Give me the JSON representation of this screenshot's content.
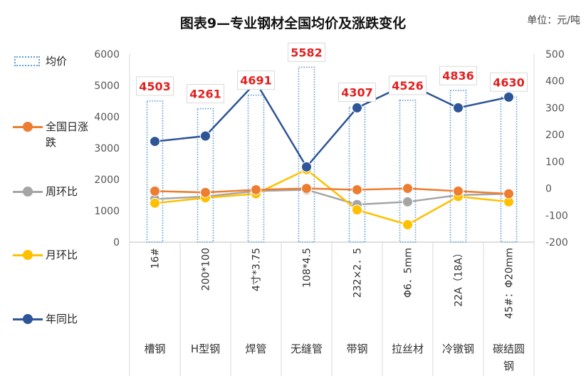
{
  "chart_data": {
    "type": "bar+line",
    "title": "图表9—专业钢材全国均价及涨跌变化",
    "unit_label": "单位：元/吨",
    "categories": [
      "槽钢",
      "H型钢",
      "焊管",
      "无缝管",
      "带钢",
      "拉丝材",
      "冷镦钢",
      "碳结圆钢"
    ],
    "specs": [
      "16#",
      "200*100",
      "4寸*3.75",
      "108*4.5",
      "232×2．5",
      "Φ6．5mm",
      "22A（18A）",
      "45#：Φ20mm"
    ],
    "y_left": {
      "min": 0,
      "max": 6000,
      "ticks": [
        0,
        1000,
        2000,
        3000,
        4000,
        5000,
        6000
      ]
    },
    "y_right": {
      "min": -200,
      "max": 500,
      "ticks": [
        -200,
        -100,
        0,
        100,
        200,
        300,
        400,
        500
      ]
    },
    "bar_series": {
      "name": "均价",
      "values": [
        4503,
        4261,
        4691,
        5582,
        4307,
        4526,
        4836,
        4630
      ],
      "axis": "left"
    },
    "series": [
      {
        "name": "全国日涨跌",
        "color": "#ED7D31",
        "axis": "right",
        "values": [
          -10,
          -15,
          -5,
          0,
          -5,
          0,
          -10,
          -20
        ]
      },
      {
        "name": "周环比",
        "color": "#A5A5A5",
        "axis": "right",
        "values": [
          -40,
          -30,
          -10,
          -5,
          -60,
          -50,
          -25,
          -20
        ]
      },
      {
        "name": "月环比",
        "color": "#FFC000",
        "axis": "right",
        "values": [
          -55,
          -35,
          -20,
          70,
          -80,
          -135,
          -30,
          -50
        ]
      },
      {
        "name": "年同比",
        "color": "#2E5597",
        "axis": "right",
        "values": [
          175,
          195,
          395,
          80,
          300,
          390,
          300,
          340
        ]
      }
    ],
    "legend_position": "left"
  }
}
